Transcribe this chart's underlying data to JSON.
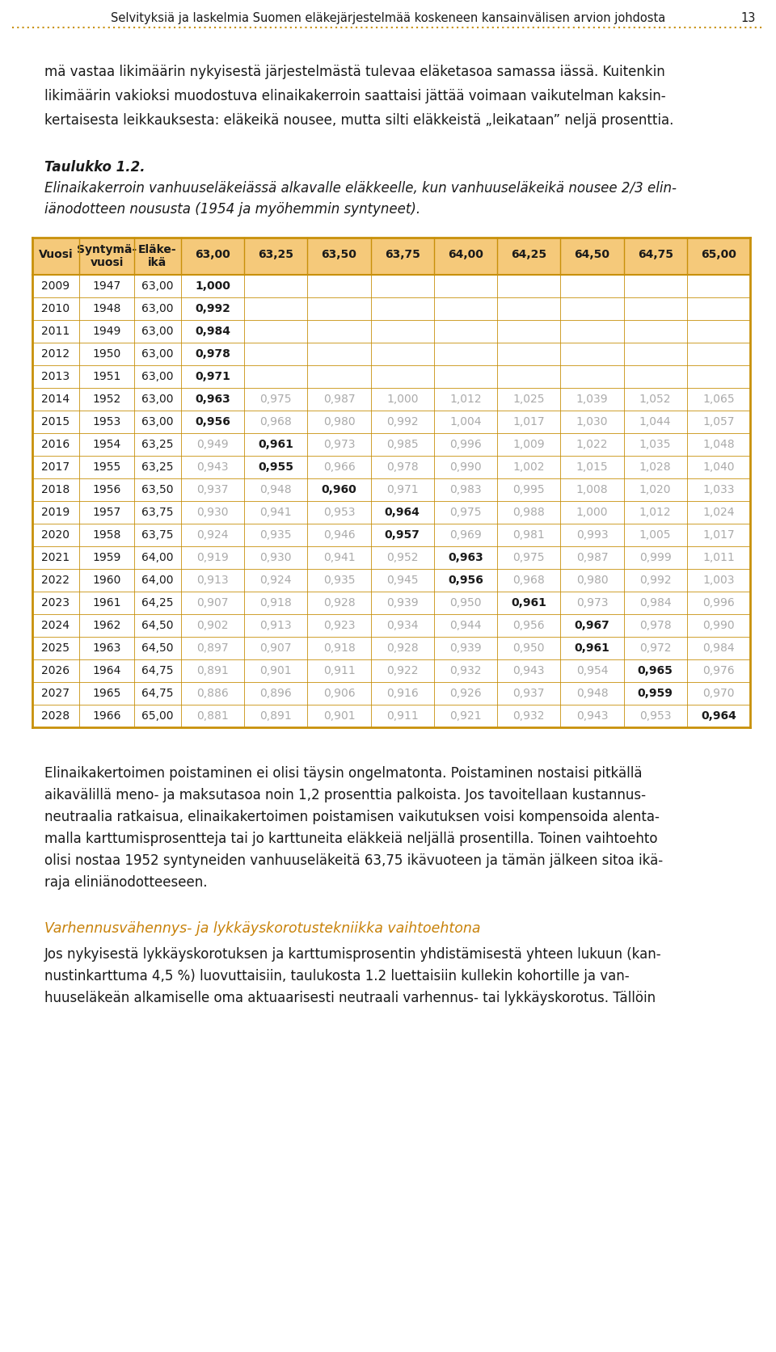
{
  "page_header": "Selvityksiä ja laskelmia Suomen eläkejärjestelmää koskeneen kansainvälisen arvion johdosta",
  "page_number": "13",
  "header_line_color": "#d4a030",
  "intro_text": [
    "mä vastaa likimäärin nykyisestä järjestelmästä tulevaa eläketasoa samassa iässä. Kuitenkin",
    "likimäärin vakioksi muodostuva elinaikakerroin saattaisi jättää voimaan vaikutelman kaksin-",
    "kertaisesta leikkauksesta: eläkeikä nousee, mutta silti eläkkeistä „leikataan” neljä prosenttia."
  ],
  "table_title_bold": "Taulukko 1.2.",
  "table_subtitle": [
    "Elinaikakerroin vanhuuseläkeiässä alkavalle eläkkeelle, kun vanhuuseläkeikä nousee 2/3 elin-",
    "iänodotteen noususta (1954 ja myöhemmin syntyneet)."
  ],
  "col_headers": [
    "Vuosi",
    "Syntymä-\nvuosi",
    "Eläke-\nikä",
    "63,00",
    "63,25",
    "63,50",
    "63,75",
    "64,00",
    "64,25",
    "64,50",
    "64,75",
    "65,00"
  ],
  "header_bg": "#f5c97a",
  "header_border": "#c8900a",
  "table_data": [
    [
      "2009",
      "1947",
      "63,00",
      "1,000",
      "",
      "",
      "",
      "",
      "",
      "",
      "",
      ""
    ],
    [
      "2010",
      "1948",
      "63,00",
      "0,992",
      "",
      "",
      "",
      "",
      "",
      "",
      "",
      ""
    ],
    [
      "2011",
      "1949",
      "63,00",
      "0,984",
      "",
      "",
      "",
      "",
      "",
      "",
      "",
      ""
    ],
    [
      "2012",
      "1950",
      "63,00",
      "0,978",
      "",
      "",
      "",
      "",
      "",
      "",
      "",
      ""
    ],
    [
      "2013",
      "1951",
      "63,00",
      "0,971",
      "",
      "",
      "",
      "",
      "",
      "",
      "",
      ""
    ],
    [
      "2014",
      "1952",
      "63,00",
      "0,963",
      "0,975",
      "0,987",
      "1,000",
      "1,012",
      "1,025",
      "1,039",
      "1,052",
      "1,065"
    ],
    [
      "2015",
      "1953",
      "63,00",
      "0,956",
      "0,968",
      "0,980",
      "0,992",
      "1,004",
      "1,017",
      "1,030",
      "1,044",
      "1,057"
    ],
    [
      "2016",
      "1954",
      "63,25",
      "0,949",
      "0,961",
      "0,973",
      "0,985",
      "0,996",
      "1,009",
      "1,022",
      "1,035",
      "1,048"
    ],
    [
      "2017",
      "1955",
      "63,25",
      "0,943",
      "0,955",
      "0,966",
      "0,978",
      "0,990",
      "1,002",
      "1,015",
      "1,028",
      "1,040"
    ],
    [
      "2018",
      "1956",
      "63,50",
      "0,937",
      "0,948",
      "0,960",
      "0,971",
      "0,983",
      "0,995",
      "1,008",
      "1,020",
      "1,033"
    ],
    [
      "2019",
      "1957",
      "63,75",
      "0,930",
      "0,941",
      "0,953",
      "0,964",
      "0,975",
      "0,988",
      "1,000",
      "1,012",
      "1,024"
    ],
    [
      "2020",
      "1958",
      "63,75",
      "0,924",
      "0,935",
      "0,946",
      "0,957",
      "0,969",
      "0,981",
      "0,993",
      "1,005",
      "1,017"
    ],
    [
      "2021",
      "1959",
      "64,00",
      "0,919",
      "0,930",
      "0,941",
      "0,952",
      "0,963",
      "0,975",
      "0,987",
      "0,999",
      "1,011"
    ],
    [
      "2022",
      "1960",
      "64,00",
      "0,913",
      "0,924",
      "0,935",
      "0,945",
      "0,956",
      "0,968",
      "0,980",
      "0,992",
      "1,003"
    ],
    [
      "2023",
      "1961",
      "64,25",
      "0,907",
      "0,918",
      "0,928",
      "0,939",
      "0,950",
      "0,961",
      "0,973",
      "0,984",
      "0,996"
    ],
    [
      "2024",
      "1962",
      "64,50",
      "0,902",
      "0,913",
      "0,923",
      "0,934",
      "0,944",
      "0,956",
      "0,967",
      "0,978",
      "0,990"
    ],
    [
      "2025",
      "1963",
      "64,50",
      "0,897",
      "0,907",
      "0,918",
      "0,928",
      "0,939",
      "0,950",
      "0,961",
      "0,972",
      "0,984"
    ],
    [
      "2026",
      "1964",
      "64,75",
      "0,891",
      "0,901",
      "0,911",
      "0,922",
      "0,932",
      "0,943",
      "0,954",
      "0,965",
      "0,976"
    ],
    [
      "2027",
      "1965",
      "64,75",
      "0,886",
      "0,896",
      "0,906",
      "0,916",
      "0,926",
      "0,937",
      "0,948",
      "0,959",
      "0,970"
    ],
    [
      "2028",
      "1966",
      "65,00",
      "0,881",
      "0,891",
      "0,901",
      "0,911",
      "0,921",
      "0,932",
      "0,943",
      "0,953",
      "0,964"
    ]
  ],
  "bold_col_indices": {
    "2009": 3,
    "2010": 3,
    "2011": 3,
    "2012": 3,
    "2013": 3,
    "2014": 3,
    "2015": 3,
    "2016": 4,
    "2017": 4,
    "2018": 5,
    "2019": 6,
    "2020": 6,
    "2021": 7,
    "2022": 7,
    "2023": 8,
    "2024": 9,
    "2025": 9,
    "2026": 10,
    "2027": 10,
    "2028": 11
  },
  "footer_text": [
    "Elinaikakertoimen poistaminen ei olisi täysin ongelmatonta. Poistaminen nostaisi pitkällä",
    "aikavälillä meno- ja maksutasoa noin 1,2 prosenttia palkoista. Jos tavoitellaan kustannus-",
    "neutraalia ratkaisua, elinaikakertoimen poistamisen vaikutuksen voisi kompensoida alenta-",
    "malla karttumisprosentteja tai jo karttuneita eläkkeiä neljällä prosentilla. Toinen vaihtoehto",
    "olisi nostaa 1952 syntyneiden vanhuuseläkeitä 63,75 ikävuoteen ja tämän jälkeen sitoa ikä-",
    "raja eliniänodotteeseen."
  ],
  "footer2_italic_title": "Varhennusvähennys- ja lykkäyskorotustekniikka vaihtoehtona",
  "footer2_text": [
    "Jos nykyisestä lykkäyskorotuksen ja karttumisprosentin yhdistämisestä yhteen lukuun (kan-",
    "nustinkarttuma 4,5 %) luovuttaisiin, taulukosta 1.2 luettaisiin kullekin kohortille ja van-",
    "huuseläkeän alkamiselle oma aktuaarisesti neutraali varhennus- tai lykkäyskorotus. Tällöin"
  ],
  "bg_color": "#ffffff",
  "text_color": "#1a1a1a",
  "gray_color": "#aaaaaa",
  "orange_color": "#c8820a"
}
